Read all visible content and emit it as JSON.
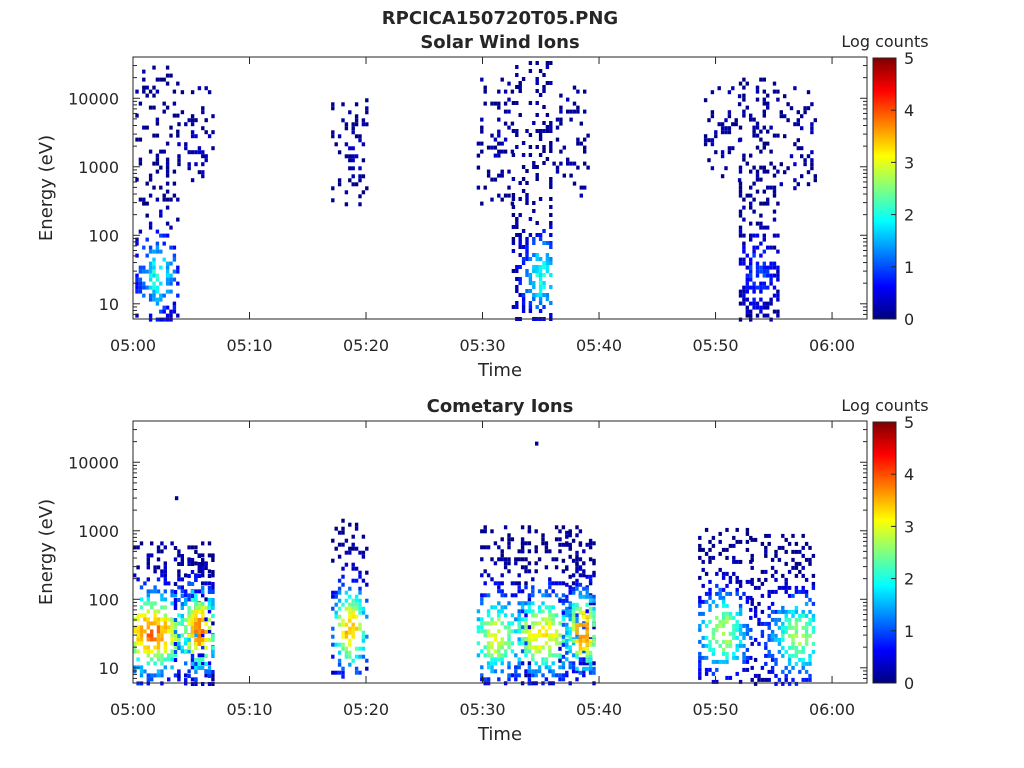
{
  "figure": {
    "title": "RPCICA150720T05.PNG"
  },
  "chart_data": [
    {
      "type": "heatmap",
      "title": "Solar Wind Ions",
      "xlabel": "Time",
      "ylabel": "Energy (eV)",
      "x_ticks": [
        "05:00",
        "05:10",
        "05:20",
        "05:30",
        "05:40",
        "05:50",
        "06:00"
      ],
      "y_ticks": [
        "10",
        "100",
        "1000",
        "10000"
      ],
      "y_scale": "log",
      "ylim": [
        6,
        40000
      ],
      "xlim_minutes": [
        0,
        63
      ],
      "colorbar": {
        "label": "Log counts",
        "ticks": [
          "0",
          "1",
          "2",
          "3",
          "4",
          "5"
        ],
        "range": [
          0,
          5
        ],
        "colormap": "jet"
      },
      "bursts": [
        {
          "t0": 0.2,
          "t1": 3.8,
          "e_low": 6,
          "e_high": 30000,
          "core_t": 2.0,
          "core_e": 28,
          "peak_log_counts": 2.0,
          "density": 0.55
        },
        {
          "t0": 3.8,
          "t1": 7.0,
          "e_low": 600,
          "e_high": 15000,
          "core_t": 5.0,
          "core_e": 2000,
          "peak_log_counts": 0.3,
          "density": 0.25
        },
        {
          "t0": 17.0,
          "t1": 20.0,
          "e_low": 300,
          "e_high": 10000,
          "core_t": 18.5,
          "core_e": 2000,
          "peak_log_counts": 0.2,
          "density": 0.3
        },
        {
          "t0": 29.5,
          "t1": 32.5,
          "e_low": 300,
          "e_high": 20000,
          "core_t": 31.0,
          "core_e": 2000,
          "peak_log_counts": 0.2,
          "density": 0.25
        },
        {
          "t0": 32.5,
          "t1": 36.0,
          "e_low": 6,
          "e_high": 35000,
          "core_t": 35.0,
          "core_e": 28,
          "peak_log_counts": 2.0,
          "density": 0.6
        },
        {
          "t0": 36.0,
          "t1": 39.0,
          "e_low": 400,
          "e_high": 20000,
          "core_t": 37.5,
          "core_e": 3000,
          "peak_log_counts": 0.2,
          "density": 0.25
        },
        {
          "t0": 49.0,
          "t1": 52.0,
          "e_low": 600,
          "e_high": 15000,
          "core_t": 50.5,
          "core_e": 3000,
          "peak_log_counts": 0.2,
          "density": 0.25
        },
        {
          "t0": 52.0,
          "t1": 55.5,
          "e_low": 6,
          "e_high": 20000,
          "core_t": 53.5,
          "core_e": 30,
          "peak_log_counts": 0.9,
          "density": 0.6
        },
        {
          "t0": 55.5,
          "t1": 58.5,
          "e_low": 500,
          "e_high": 15000,
          "core_t": 57.0,
          "core_e": 2000,
          "peak_log_counts": 0.2,
          "density": 0.25
        }
      ]
    },
    {
      "type": "heatmap",
      "title": "Cometary Ions",
      "xlabel": "Time",
      "ylabel": "Energy (eV)",
      "x_ticks": [
        "05:00",
        "05:10",
        "05:20",
        "05:30",
        "05:40",
        "05:50",
        "06:00"
      ],
      "y_ticks": [
        "10",
        "100",
        "1000",
        "10000"
      ],
      "y_scale": "log",
      "ylim": [
        6,
        40000
      ],
      "xlim_minutes": [
        0,
        63
      ],
      "colorbar": {
        "label": "Log counts",
        "ticks": [
          "0",
          "1",
          "2",
          "3",
          "4",
          "5"
        ],
        "range": [
          0,
          5
        ],
        "colormap": "jet"
      },
      "bursts": [
        {
          "t0": 0.0,
          "t1": 7.0,
          "e_low": 6,
          "e_high": 700,
          "core_t": 1.5,
          "core_e": 35,
          "peak_log_counts": 3.8,
          "density": 0.6
        },
        {
          "t0": 3.5,
          "t1": 7.0,
          "e_low": 6,
          "e_high": 600,
          "core_t": 5.5,
          "core_e": 38,
          "peak_log_counts": 3.9,
          "density": 0.6
        },
        {
          "t0": 17.0,
          "t1": 20.0,
          "e_low": 7,
          "e_high": 1500,
          "core_t": 18.5,
          "core_e": 40,
          "peak_log_counts": 3.6,
          "density": 0.6
        },
        {
          "t0": 29.5,
          "t1": 34.0,
          "e_low": 6,
          "e_high": 1200,
          "core_t": 31.0,
          "core_e": 30,
          "peak_log_counts": 3.0,
          "density": 0.6
        },
        {
          "t0": 33.0,
          "t1": 39.5,
          "e_low": 6,
          "e_high": 1200,
          "core_t": 35.0,
          "core_e": 32,
          "peak_log_counts": 3.2,
          "density": 0.6
        },
        {
          "t0": 36.5,
          "t1": 39.5,
          "e_low": 8,
          "e_high": 1000,
          "core_t": 38.5,
          "core_e": 35,
          "peak_log_counts": 3.8,
          "density": 0.6
        },
        {
          "t0": 48.5,
          "t1": 53.0,
          "e_low": 6,
          "e_high": 1100,
          "core_t": 50.5,
          "core_e": 35,
          "peak_log_counts": 2.8,
          "density": 0.6
        },
        {
          "t0": 53.0,
          "t1": 58.5,
          "e_low": 6,
          "e_high": 900,
          "core_t": 57.0,
          "core_e": 30,
          "peak_log_counts": 2.6,
          "density": 0.6
        }
      ],
      "isolated_points": [
        {
          "t": 3.6,
          "e": 3200,
          "log_counts": 0.1
        },
        {
          "t": 34.5,
          "e": 20000,
          "log_counts": 0.1
        }
      ]
    }
  ]
}
